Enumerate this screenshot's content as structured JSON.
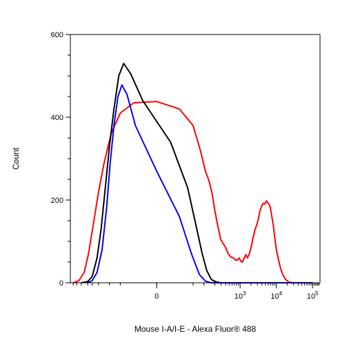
{
  "chart_data": {
    "type": "line",
    "xlabel": "Mouse I-A/I-E - Alexa Fluor® 488",
    "ylabel": "Count",
    "ylim": [
      0,
      600
    ],
    "y_ticks": [
      0,
      200,
      400,
      600
    ],
    "x_scale": "biexponential",
    "x_ticks": [
      {
        "value": 0,
        "base": "0",
        "exp": ""
      },
      {
        "value": 1000,
        "base": "10",
        "exp": "3"
      },
      {
        "value": 10000,
        "base": "10",
        "exp": "4"
      },
      {
        "value": 100000,
        "base": "10",
        "exp": "5"
      }
    ],
    "grid": false,
    "legend": "none",
    "series": [
      {
        "color": "#ff0000",
        "points": [
          [
            -1000,
            0
          ],
          [
            -700,
            5
          ],
          [
            -500,
            25
          ],
          [
            -380,
            70
          ],
          [
            -280,
            140
          ],
          [
            -200,
            220
          ],
          [
            -140,
            290
          ],
          [
            -90,
            360
          ],
          [
            -50,
            410
          ],
          [
            -20,
            435
          ],
          [
            0,
            438
          ],
          [
            20,
            420
          ],
          [
            50,
            380
          ],
          [
            80,
            320
          ],
          [
            110,
            270
          ],
          [
            140,
            245
          ],
          [
            170,
            215
          ],
          [
            200,
            175
          ],
          [
            240,
            140
          ],
          [
            290,
            105
          ],
          [
            340,
            95
          ],
          [
            400,
            85
          ],
          [
            470,
            70
          ],
          [
            560,
            62
          ],
          [
            650,
            60
          ],
          [
            750,
            55
          ],
          [
            850,
            55
          ],
          [
            950,
            60
          ],
          [
            1050,
            52
          ],
          [
            1150,
            50
          ],
          [
            1300,
            60
          ],
          [
            1450,
            68
          ],
          [
            1600,
            60
          ],
          [
            1800,
            70
          ],
          [
            2000,
            85
          ],
          [
            2300,
            110
          ],
          [
            2600,
            130
          ],
          [
            2900,
            140
          ],
          [
            3200,
            155
          ],
          [
            3500,
            172
          ],
          [
            3900,
            185
          ],
          [
            4300,
            192
          ],
          [
            4800,
            190
          ],
          [
            5300,
            198
          ],
          [
            5800,
            193
          ],
          [
            6300,
            190
          ],
          [
            6900,
            180
          ],
          [
            7500,
            160
          ],
          [
            8200,
            140
          ],
          [
            9000,
            110
          ],
          [
            10000,
            80
          ],
          [
            11500,
            55
          ],
          [
            13000,
            35
          ],
          [
            15000,
            20
          ],
          [
            18000,
            8
          ],
          [
            22000,
            2
          ],
          [
            28000,
            0
          ],
          [
            100000,
            0
          ]
        ]
      },
      {
        "color": "#000000",
        "points": [
          [
            -600,
            0
          ],
          [
            -400,
            3
          ],
          [
            -300,
            15
          ],
          [
            -220,
            60
          ],
          [
            -170,
            130
          ],
          [
            -130,
            230
          ],
          [
            -100,
            330
          ],
          [
            -75,
            420
          ],
          [
            -55,
            500
          ],
          [
            -40,
            530
          ],
          [
            -25,
            505
          ],
          [
            -10,
            440
          ],
          [
            10,
            340
          ],
          [
            35,
            230
          ],
          [
            60,
            140
          ],
          [
            90,
            70
          ],
          [
            120,
            30
          ],
          [
            160,
            8
          ],
          [
            220,
            2
          ],
          [
            300,
            0
          ],
          [
            100000,
            0
          ]
        ]
      },
      {
        "color": "#0000ff",
        "points": [
          [
            -400,
            0
          ],
          [
            -300,
            5
          ],
          [
            -220,
            25
          ],
          [
            -160,
            80
          ],
          [
            -120,
            180
          ],
          [
            -95,
            290
          ],
          [
            -75,
            380
          ],
          [
            -58,
            450
          ],
          [
            -45,
            478
          ],
          [
            -32,
            455
          ],
          [
            -18,
            380
          ],
          [
            0,
            270
          ],
          [
            20,
            160
          ],
          [
            45,
            70
          ],
          [
            75,
            20
          ],
          [
            110,
            4
          ],
          [
            160,
            0
          ],
          [
            100000,
            0
          ]
        ]
      }
    ]
  }
}
